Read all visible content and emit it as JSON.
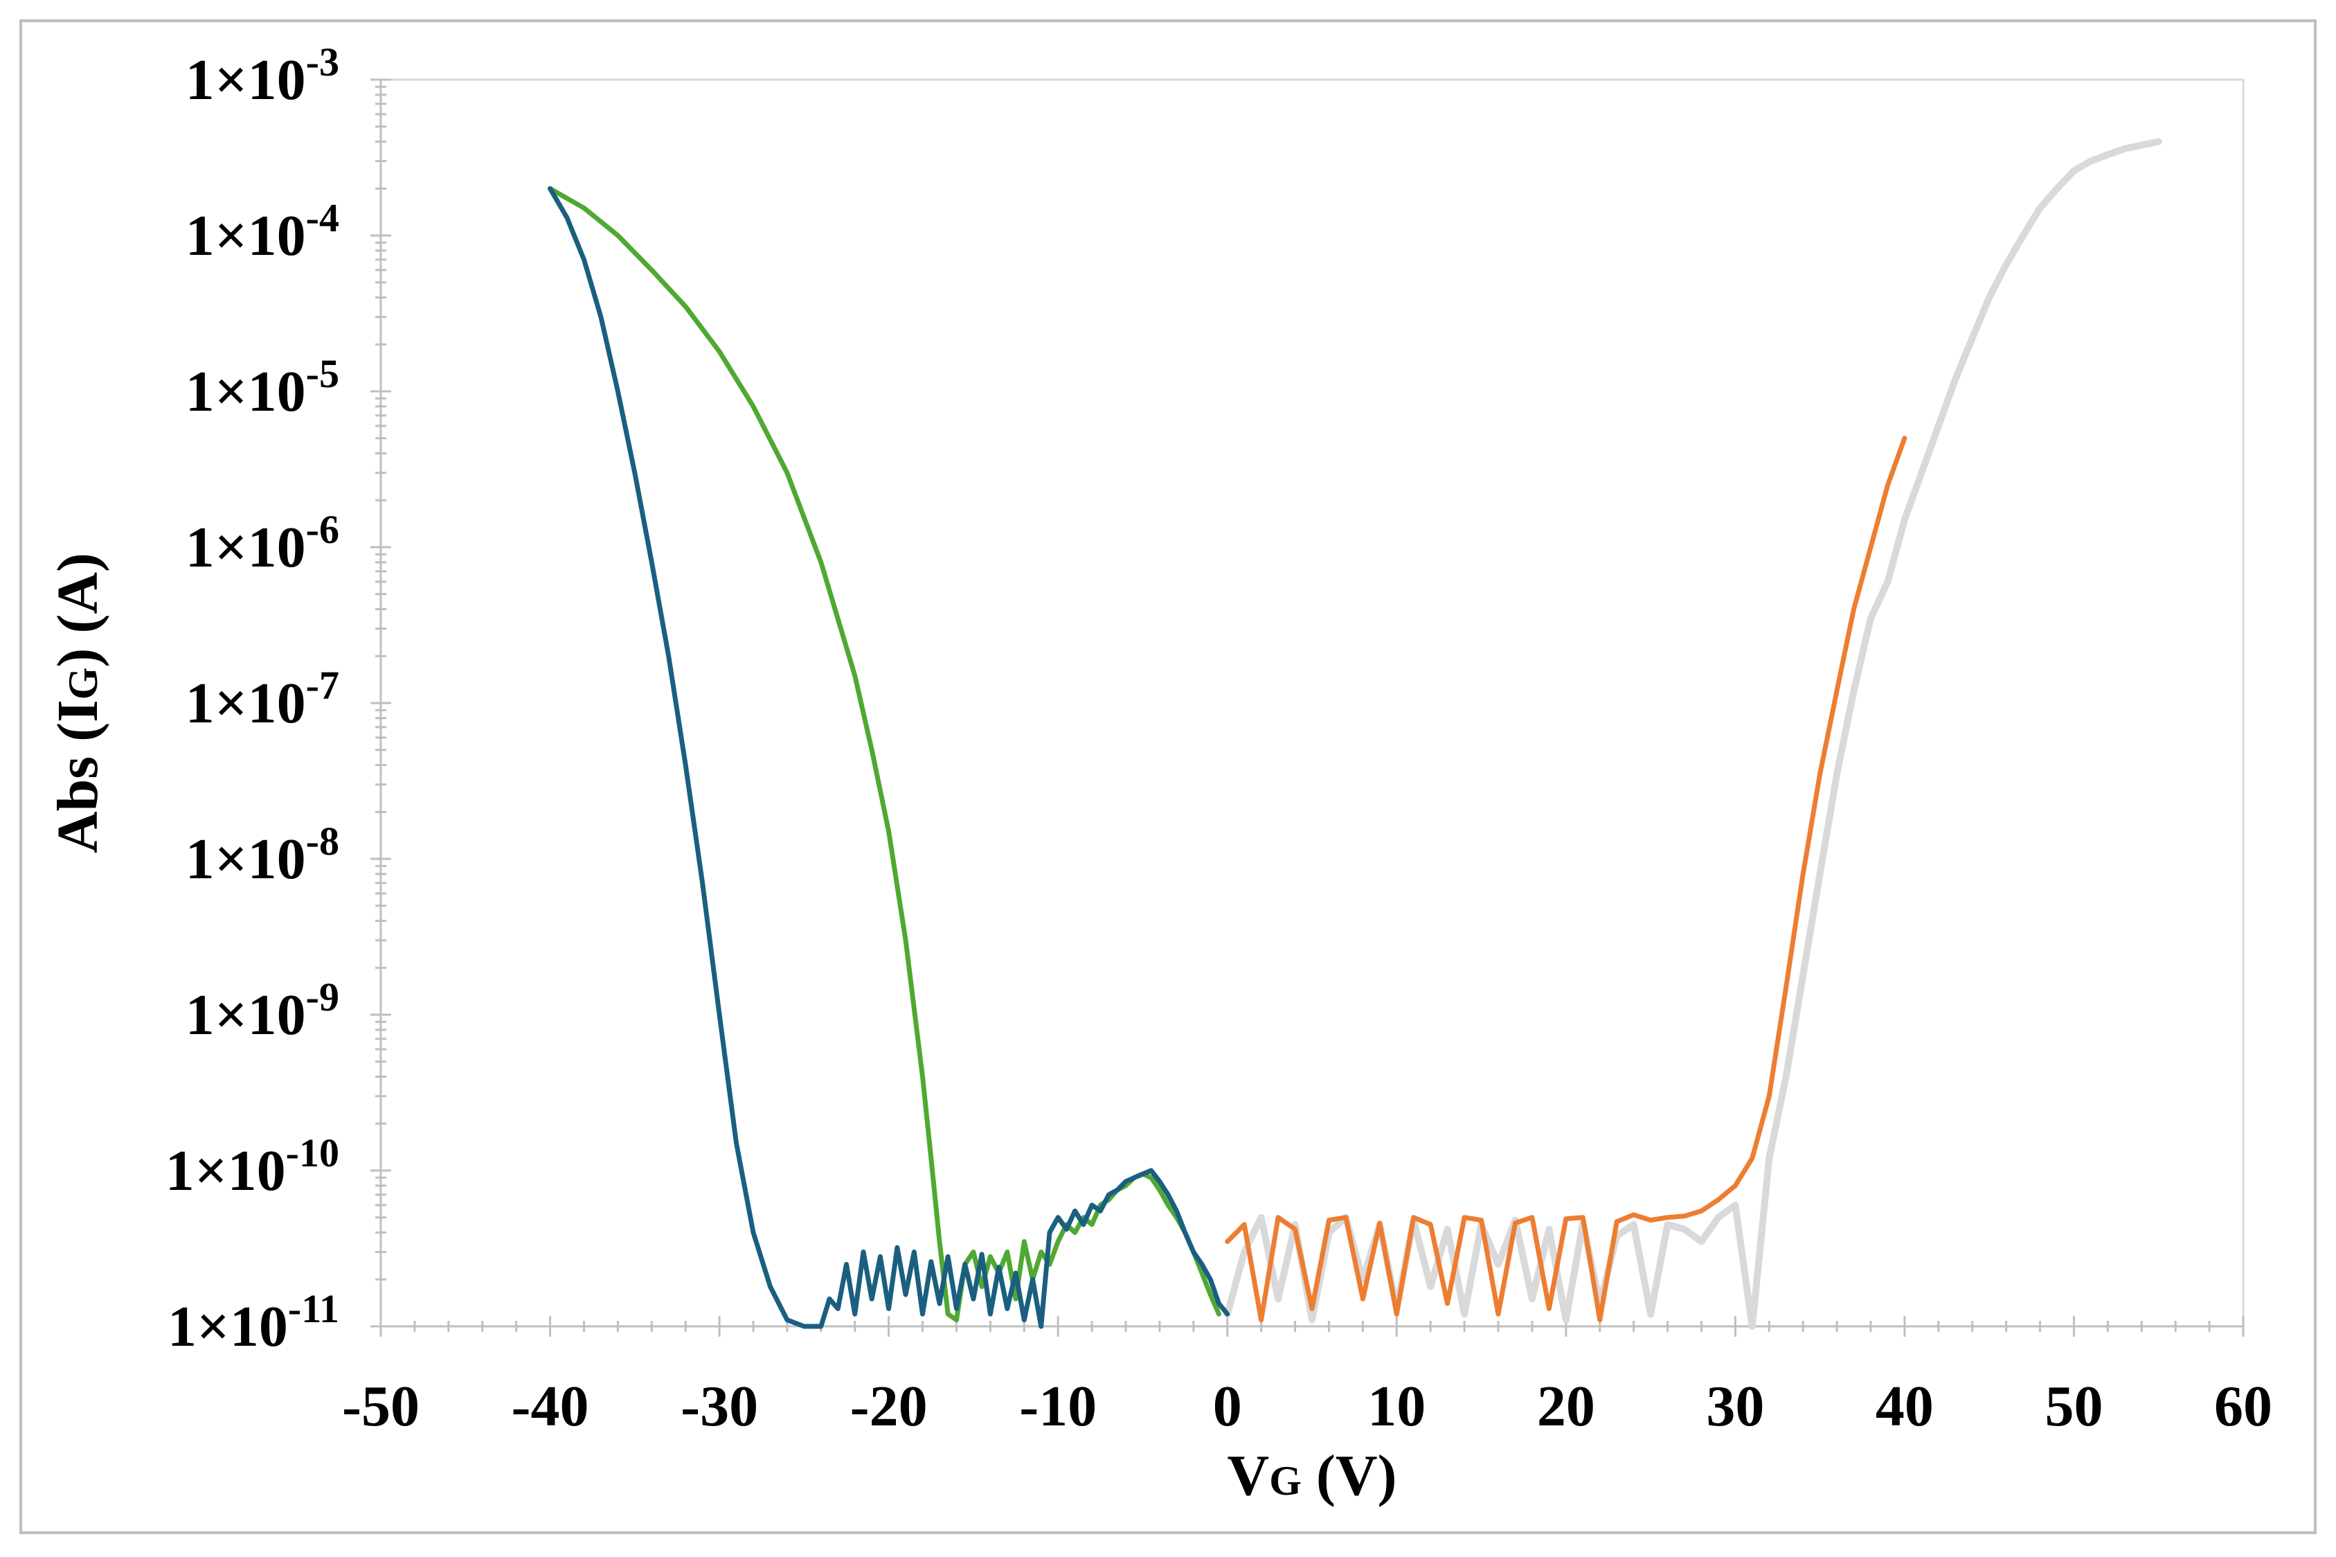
{
  "chart_data": {
    "type": "line",
    "xlabel": "VG (V)",
    "xlabel_main": "V",
    "xlabel_sub": "G",
    "xlabel_rest": " (V)",
    "ylabel": "Abs (IG) (A)",
    "ylabel_pre": "Abs (I",
    "ylabel_sub": "G",
    "ylabel_post": ") (A)",
    "xlim": [
      -50,
      60
    ],
    "ylim": [
      1e-11,
      0.001
    ],
    "yscale": "log",
    "grid": false,
    "legend": "none",
    "x_ticks": [
      -50,
      -40,
      -30,
      -20,
      -10,
      0,
      10,
      20,
      30,
      40,
      50,
      60
    ],
    "x_tick_labels": [
      "-50",
      "-40",
      "-30",
      "-20",
      "-10",
      "0",
      "10",
      "20",
      "30",
      "40",
      "50",
      "60"
    ],
    "y_ticks": [
      1e-11,
      1e-10,
      1e-09,
      1e-08,
      1e-07,
      1e-06,
      1e-05,
      0.0001,
      0.001
    ],
    "y_tick_labels": [
      {
        "base": "1×10",
        "exp": "-11"
      },
      {
        "base": "1×10",
        "exp": "-10"
      },
      {
        "base": "1×10",
        "exp": "-9"
      },
      {
        "base": "1×10",
        "exp": "-8"
      },
      {
        "base": "1×10",
        "exp": "-7"
      },
      {
        "base": "1×10",
        "exp": "-6"
      },
      {
        "base": "1×10",
        "exp": "-5"
      },
      {
        "base": "1×10",
        "exp": "-4"
      },
      {
        "base": "1×10",
        "exp": "-3"
      }
    ],
    "series": [
      {
        "color": "#1a5f80",
        "x": [
          -40,
          -39,
          -38,
          -37,
          -36,
          -35,
          -34,
          -33,
          -32,
          -31,
          -30,
          -29,
          -28,
          -27,
          -26,
          -25,
          -24.5,
          -24,
          -23.5,
          -23,
          -22.5,
          -22,
          -21.5,
          -21,
          -20.5,
          -20,
          -19.5,
          -19,
          -18.5,
          -18,
          -17.5,
          -17,
          -16.5,
          -16,
          -15.5,
          -15,
          -14.5,
          -14,
          -13.5,
          -13,
          -12.5,
          -12,
          -11.5,
          -11,
          -10.5,
          -10,
          -9.5,
          -9,
          -8.5,
          -8,
          -7.5,
          -7,
          -6.5,
          -6,
          -5.5,
          -5,
          -4.5,
          -4,
          -3.5,
          -3,
          -2.5,
          -2,
          -1.5,
          -1,
          -0.5,
          0
        ],
        "y": [
          0.0002,
          0.00013,
          7e-05,
          3e-05,
          1e-05,
          3e-06,
          8e-07,
          2e-07,
          4e-08,
          7e-09,
          1e-09,
          1.5e-10,
          4e-11,
          1.8e-11,
          1.1e-11,
          1e-11,
          1e-11,
          1e-11,
          1.5e-11,
          1.3e-11,
          2.5e-11,
          1.2e-11,
          3e-11,
          1.5e-11,
          2.8e-11,
          1.3e-11,
          3.2e-11,
          1.6e-11,
          3e-11,
          1.2e-11,
          2.6e-11,
          1.4e-11,
          2.8e-11,
          1.3e-11,
          2.5e-11,
          1.5e-11,
          2.9e-11,
          1.2e-11,
          2.4e-11,
          1.3e-11,
          2.2e-11,
          1.1e-11,
          2e-11,
          1e-11,
          4e-11,
          5e-11,
          4.2e-11,
          5.5e-11,
          4.5e-11,
          6e-11,
          5.5e-11,
          7e-11,
          7.5e-11,
          8.5e-11,
          9e-11,
          9.5e-11,
          1e-10,
          8.5e-11,
          7e-11,
          5.5e-11,
          4e-11,
          3e-11,
          2.5e-11,
          2e-11,
          1.4e-11,
          1.2e-11
        ]
      },
      {
        "color": "#4fa832",
        "x": [
          -40,
          -38,
          -36,
          -34,
          -32,
          -30,
          -28,
          -26,
          -24,
          -22,
          -21,
          -20,
          -19,
          -18,
          -17.5,
          -17,
          -16.5,
          -16,
          -15.5,
          -15,
          -14.5,
          -14,
          -13.5,
          -13,
          -12.5,
          -12,
          -11.5,
          -11,
          -10.5,
          -10,
          -9.5,
          -9,
          -8.5,
          -8,
          -7.5,
          -7,
          -6.5,
          -6,
          -5.5,
          -5,
          -4.5,
          -4,
          -3.5,
          -3,
          -2.5,
          -2,
          -1.5,
          -1,
          -0.5
        ],
        "y": [
          0.0002,
          0.00015,
          0.0001,
          6e-05,
          3.5e-05,
          1.8e-05,
          8e-06,
          3e-06,
          8e-07,
          1.5e-07,
          5e-08,
          1.5e-08,
          3e-09,
          4e-10,
          1.2e-10,
          3.5e-11,
          1.2e-11,
          1.1e-11,
          2.5e-11,
          3e-11,
          1.8e-11,
          2.8e-11,
          2.2e-11,
          3e-11,
          1.5e-11,
          3.5e-11,
          2e-11,
          3e-11,
          2.5e-11,
          3.5e-11,
          4.5e-11,
          4e-11,
          5e-11,
          4.5e-11,
          6e-11,
          6.5e-11,
          7.5e-11,
          8e-11,
          9e-11,
          9.5e-11,
          9e-11,
          7.5e-11,
          6e-11,
          5e-11,
          4e-11,
          3e-11,
          2.2e-11,
          1.6e-11,
          1.2e-11
        ]
      },
      {
        "color": "#ed7d31",
        "x": [
          0,
          1,
          2,
          3,
          4,
          5,
          6,
          7,
          8,
          9,
          10,
          11,
          12,
          13,
          14,
          15,
          16,
          17,
          18,
          19,
          20,
          21,
          22,
          23,
          24,
          25,
          26,
          27,
          28,
          29,
          30,
          31,
          32,
          33,
          34,
          35,
          36,
          37,
          38,
          39,
          40
        ],
        "y": [
          3.5e-11,
          4.5e-11,
          1.1e-11,
          5e-11,
          4.2e-11,
          1.3e-11,
          4.8e-11,
          5e-11,
          1.5e-11,
          4.6e-11,
          1.2e-11,
          5e-11,
          4.5e-11,
          1.4e-11,
          5e-11,
          4.8e-11,
          1.2e-11,
          4.6e-11,
          5e-11,
          1.3e-11,
          4.9e-11,
          5e-11,
          1.1e-11,
          4.7e-11,
          5.2e-11,
          4.8e-11,
          5e-11,
          5.1e-11,
          5.5e-11,
          6.5e-11,
          8e-11,
          1.2e-10,
          3e-10,
          1.5e-09,
          8e-09,
          3.5e-08,
          1.2e-07,
          4e-07,
          1e-06,
          2.5e-06,
          5e-06
        ]
      },
      {
        "color": "#d9d9d9",
        "x": [
          0,
          1,
          2,
          3,
          4,
          5,
          6,
          7,
          8,
          9,
          10,
          11,
          12,
          13,
          14,
          15,
          16,
          17,
          18,
          19,
          20,
          21,
          22,
          23,
          24,
          25,
          26,
          27,
          28,
          29,
          30,
          31,
          32,
          33,
          34,
          35,
          36,
          37,
          38,
          39,
          40,
          41,
          42,
          43,
          44,
          45,
          46,
          47,
          48,
          49,
          50,
          51,
          52,
          53,
          54,
          55
        ],
        "y": [
          1.2e-11,
          3e-11,
          5e-11,
          1.5e-11,
          4.5e-11,
          1.1e-11,
          4e-11,
          5e-11,
          2e-11,
          4.5e-11,
          1.3e-11,
          4.8e-11,
          1.8e-11,
          4.2e-11,
          1.2e-11,
          4.5e-11,
          2.5e-11,
          4.8e-11,
          1.5e-11,
          4.2e-11,
          1.1e-11,
          4.6e-11,
          1.4e-11,
          3.8e-11,
          4.5e-11,
          1.2e-11,
          4.5e-11,
          4.2e-11,
          3.5e-11,
          5e-11,
          6e-11,
          1e-11,
          1.2e-10,
          4e-10,
          1.8e-09,
          8e-09,
          3.5e-08,
          1.2e-07,
          3.5e-07,
          6e-07,
          1.5e-06,
          3e-06,
          6e-06,
          1.2e-05,
          2.2e-05,
          4e-05,
          6.5e-05,
          0.0001,
          0.00015,
          0.0002,
          0.00026,
          0.0003,
          0.00033,
          0.00036,
          0.00038,
          0.0004
        ]
      }
    ]
  }
}
